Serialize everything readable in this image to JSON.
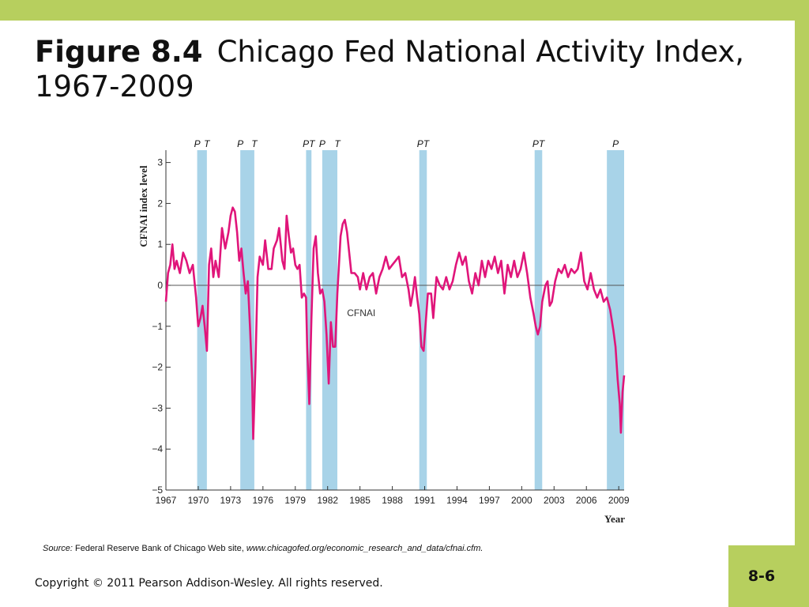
{
  "slide": {
    "title_label": "Figure 8.4",
    "title_text": "Chicago Fed National Activity Index, 1967-2009",
    "source_prefix": "Source:",
    "source_text": "Federal Reserve Bank of Chicago Web site,",
    "source_url": "www.chicagofed.org/economic_research_and_data/cfnai.cfm.",
    "copyright": "Copyright © 2011 Pearson Addison-Wesley. All rights reserved.",
    "page_number": "8-6",
    "accent_color": "#b7cf5e"
  },
  "chart_data": {
    "type": "line",
    "xlabel": "Year",
    "ylabel": "CFNAI index level",
    "xlim": [
      1967,
      2009.5
    ],
    "ylim": [
      -5,
      3.3
    ],
    "x_ticks": [
      1967,
      1970,
      1973,
      1976,
      1979,
      1982,
      1985,
      1988,
      1991,
      1994,
      1997,
      2000,
      2003,
      2006,
      2009
    ],
    "y_ticks": [
      3,
      2,
      1,
      0,
      -1,
      -2,
      -3,
      -4,
      -5
    ],
    "y_tick_labels": [
      "3",
      "2",
      "1",
      "0",
      "−1",
      "−2",
      "−3",
      "−4",
      "−5"
    ],
    "series": [
      {
        "name": "CFNAI",
        "color": "#e0157a",
        "points": [
          [
            1967.0,
            -0.4
          ],
          [
            1967.2,
            0.3
          ],
          [
            1967.4,
            0.5
          ],
          [
            1967.6,
            1.0
          ],
          [
            1967.8,
            0.4
          ],
          [
            1968.0,
            0.6
          ],
          [
            1968.3,
            0.3
          ],
          [
            1968.6,
            0.8
          ],
          [
            1968.9,
            0.6
          ],
          [
            1969.2,
            0.3
          ],
          [
            1969.5,
            0.5
          ],
          [
            1969.8,
            -0.3
          ],
          [
            1970.0,
            -1.0
          ],
          [
            1970.2,
            -0.8
          ],
          [
            1970.4,
            -0.5
          ],
          [
            1970.6,
            -1.0
          ],
          [
            1970.8,
            -1.6
          ],
          [
            1971.0,
            0.5
          ],
          [
            1971.2,
            0.9
          ],
          [
            1971.4,
            0.2
          ],
          [
            1971.6,
            0.6
          ],
          [
            1971.9,
            0.2
          ],
          [
            1972.2,
            1.4
          ],
          [
            1972.5,
            0.9
          ],
          [
            1972.8,
            1.3
          ],
          [
            1973.0,
            1.7
          ],
          [
            1973.2,
            1.9
          ],
          [
            1973.4,
            1.8
          ],
          [
            1973.6,
            1.3
          ],
          [
            1973.8,
            0.6
          ],
          [
            1974.0,
            0.9
          ],
          [
            1974.2,
            0.3
          ],
          [
            1974.4,
            -0.2
          ],
          [
            1974.6,
            0.1
          ],
          [
            1974.8,
            -1.0
          ],
          [
            1975.0,
            -2.3
          ],
          [
            1975.1,
            -3.75
          ],
          [
            1975.3,
            -2.0
          ],
          [
            1975.5,
            0.2
          ],
          [
            1975.7,
            0.7
          ],
          [
            1976.0,
            0.5
          ],
          [
            1976.2,
            1.1
          ],
          [
            1976.5,
            0.4
          ],
          [
            1976.8,
            0.4
          ],
          [
            1977.0,
            0.9
          ],
          [
            1977.3,
            1.1
          ],
          [
            1977.5,
            1.4
          ],
          [
            1977.8,
            0.6
          ],
          [
            1978.0,
            0.4
          ],
          [
            1978.2,
            1.7
          ],
          [
            1978.4,
            1.2
          ],
          [
            1978.6,
            0.8
          ],
          [
            1978.8,
            0.9
          ],
          [
            1979.0,
            0.5
          ],
          [
            1979.2,
            0.4
          ],
          [
            1979.4,
            0.5
          ],
          [
            1979.6,
            -0.3
          ],
          [
            1979.8,
            -0.2
          ],
          [
            1980.0,
            -0.3
          ],
          [
            1980.1,
            -1.5
          ],
          [
            1980.3,
            -2.9
          ],
          [
            1980.5,
            -0.8
          ],
          [
            1980.7,
            0.9
          ],
          [
            1980.9,
            1.2
          ],
          [
            1981.1,
            0.3
          ],
          [
            1981.3,
            -0.2
          ],
          [
            1981.5,
            -0.1
          ],
          [
            1981.7,
            -0.4
          ],
          [
            1981.9,
            -1.2
          ],
          [
            1982.1,
            -2.4
          ],
          [
            1982.3,
            -0.9
          ],
          [
            1982.5,
            -1.5
          ],
          [
            1982.7,
            -1.5
          ],
          [
            1982.9,
            -0.2
          ],
          [
            1983.2,
            1.2
          ],
          [
            1983.4,
            1.5
          ],
          [
            1983.6,
            1.6
          ],
          [
            1983.8,
            1.3
          ],
          [
            1984.0,
            0.8
          ],
          [
            1984.2,
            0.3
          ],
          [
            1984.5,
            0.3
          ],
          [
            1984.8,
            0.2
          ],
          [
            1985.0,
            -0.1
          ],
          [
            1985.3,
            0.3
          ],
          [
            1985.6,
            -0.1
          ],
          [
            1985.9,
            0.2
          ],
          [
            1986.2,
            0.3
          ],
          [
            1986.5,
            -0.2
          ],
          [
            1986.8,
            0.2
          ],
          [
            1987.1,
            0.4
          ],
          [
            1987.4,
            0.7
          ],
          [
            1987.7,
            0.4
          ],
          [
            1988.0,
            0.5
          ],
          [
            1988.3,
            0.6
          ],
          [
            1988.6,
            0.7
          ],
          [
            1988.9,
            0.2
          ],
          [
            1989.2,
            0.3
          ],
          [
            1989.5,
            -0.1
          ],
          [
            1989.7,
            -0.5
          ],
          [
            1989.9,
            -0.2
          ],
          [
            1990.1,
            0.2
          ],
          [
            1990.3,
            -0.3
          ],
          [
            1990.5,
            -0.7
          ],
          [
            1990.7,
            -1.5
          ],
          [
            1990.9,
            -1.6
          ],
          [
            1991.1,
            -0.9
          ],
          [
            1991.3,
            -0.2
          ],
          [
            1991.6,
            -0.2
          ],
          [
            1991.8,
            -0.8
          ],
          [
            1992.1,
            0.2
          ],
          [
            1992.4,
            0.0
          ],
          [
            1992.7,
            -0.1
          ],
          [
            1993.0,
            0.2
          ],
          [
            1993.3,
            -0.1
          ],
          [
            1993.6,
            0.1
          ],
          [
            1993.9,
            0.5
          ],
          [
            1994.2,
            0.8
          ],
          [
            1994.5,
            0.5
          ],
          [
            1994.8,
            0.7
          ],
          [
            1995.1,
            0.1
          ],
          [
            1995.4,
            -0.2
          ],
          [
            1995.7,
            0.3
          ],
          [
            1996.0,
            0.0
          ],
          [
            1996.3,
            0.6
          ],
          [
            1996.6,
            0.2
          ],
          [
            1996.9,
            0.6
          ],
          [
            1997.2,
            0.4
          ],
          [
            1997.5,
            0.7
          ],
          [
            1997.8,
            0.3
          ],
          [
            1998.1,
            0.6
          ],
          [
            1998.4,
            -0.2
          ],
          [
            1998.7,
            0.5
          ],
          [
            1999.0,
            0.2
          ],
          [
            1999.3,
            0.6
          ],
          [
            1999.6,
            0.2
          ],
          [
            1999.9,
            0.4
          ],
          [
            2000.2,
            0.8
          ],
          [
            2000.5,
            0.3
          ],
          [
            2000.8,
            -0.3
          ],
          [
            2001.1,
            -0.7
          ],
          [
            2001.3,
            -1.0
          ],
          [
            2001.5,
            -1.2
          ],
          [
            2001.7,
            -1.0
          ],
          [
            2001.9,
            -0.4
          ],
          [
            2002.2,
            0.0
          ],
          [
            2002.4,
            0.1
          ],
          [
            2002.6,
            -0.5
          ],
          [
            2002.8,
            -0.4
          ],
          [
            2003.1,
            0.1
          ],
          [
            2003.4,
            0.4
          ],
          [
            2003.7,
            0.3
          ],
          [
            2004.0,
            0.5
          ],
          [
            2004.3,
            0.2
          ],
          [
            2004.6,
            0.4
          ],
          [
            2004.9,
            0.3
          ],
          [
            2005.2,
            0.4
          ],
          [
            2005.5,
            0.8
          ],
          [
            2005.8,
            0.1
          ],
          [
            2006.1,
            -0.1
          ],
          [
            2006.4,
            0.3
          ],
          [
            2006.7,
            -0.1
          ],
          [
            2007.0,
            -0.3
          ],
          [
            2007.3,
            -0.1
          ],
          [
            2007.6,
            -0.4
          ],
          [
            2007.9,
            -0.3
          ],
          [
            2008.2,
            -0.6
          ],
          [
            2008.5,
            -1.1
          ],
          [
            2008.7,
            -1.5
          ],
          [
            2008.9,
            -2.3
          ],
          [
            2009.1,
            -2.9
          ],
          [
            2009.2,
            -3.6
          ],
          [
            2009.35,
            -2.6
          ],
          [
            2009.5,
            -2.2
          ]
        ]
      }
    ],
    "recessions": [
      {
        "start": 1969.9,
        "end": 1970.8,
        "labels": [
          "P",
          "T"
        ]
      },
      {
        "start": 1973.9,
        "end": 1975.2,
        "labels": [
          "P",
          "T"
        ]
      },
      {
        "start": 1980.0,
        "end": 1980.5,
        "labels": [
          "PT"
        ]
      },
      {
        "start": 1981.5,
        "end": 1982.9,
        "labels": [
          "P",
          "T"
        ]
      },
      {
        "start": 1990.5,
        "end": 1991.2,
        "labels": [
          "PT"
        ]
      },
      {
        "start": 2001.2,
        "end": 2001.9,
        "labels": [
          "PT"
        ]
      },
      {
        "start": 2007.9,
        "end": 2009.5,
        "labels": [
          "P"
        ]
      }
    ],
    "recession_color": "#a8d3e8",
    "annotations": [
      {
        "text": "CFNAI",
        "x": 1983.8,
        "y": -0.75
      }
    ]
  }
}
